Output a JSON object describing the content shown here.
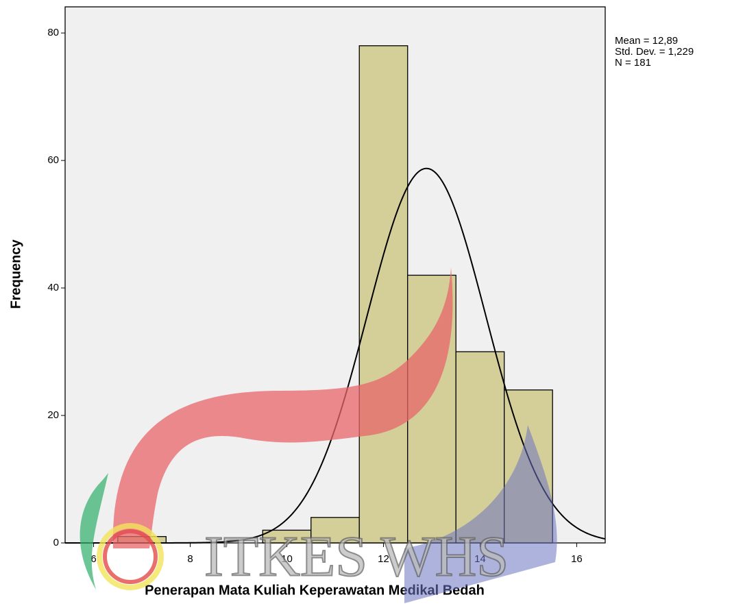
{
  "chart_data": {
    "type": "histogram",
    "x_label": "Penerapan Mata Kuliah Keperawatan Medikal Bedah",
    "y_label": "Frequency",
    "bins": [
      6.5,
      7.5,
      8.5,
      9.5,
      10.5,
      11.5,
      12.5,
      13.5,
      14.5,
      15.5
    ],
    "counts": [
      1,
      0,
      0,
      2,
      4,
      78,
      42,
      30,
      24
    ],
    "color": "#d4cf98",
    "background": "#f0f0f0",
    "curve_color": "#000000",
    "stats": [
      {
        "value": 12.89,
        "label": "Mean = 12,89"
      },
      {
        "value": 1.229,
        "label": "Std. Dev. = 1,229"
      },
      {
        "value": 181,
        "label": "N = 181"
      }
    ],
    "xlim": [
      5.41,
      16.59
    ],
    "xticks": [
      6,
      8,
      10,
      12,
      14,
      16
    ],
    "ylim": [
      0,
      84.1
    ],
    "yticks": [
      0,
      20,
      40,
      60,
      80
    ],
    "watermark": "ITKES WHS"
  }
}
